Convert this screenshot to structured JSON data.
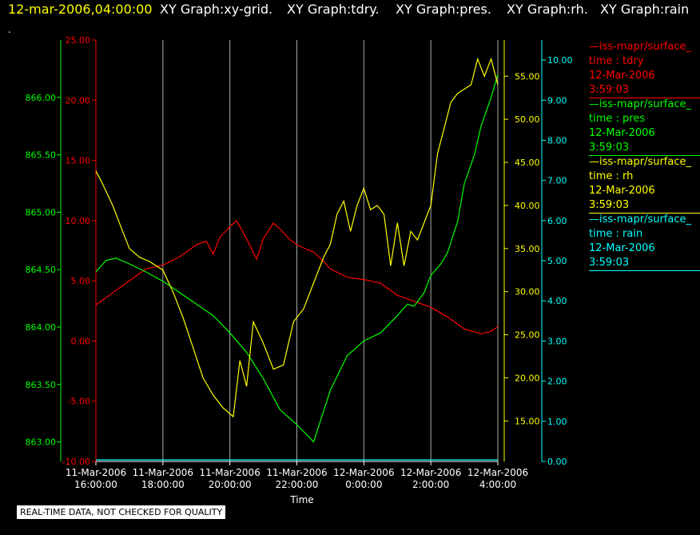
{
  "header": {
    "timestamp": "12-mar-2006,04:00:00",
    "titles": [
      "XY Graph:xy-grid.",
      "XY Graph:tdry.",
      "XY Graph:pres.",
      "XY Graph:rh.",
      "XY Graph:rain"
    ],
    "dot": "."
  },
  "notice": "REAL-TIME DATA, NOT CHECKED FOR QUALITY",
  "legend": [
    {
      "name": "—iss-mapr/surface_",
      "var": "time : tdry",
      "date": "12-Mar-2006",
      "time": "3:59:03",
      "color": "#ff0000"
    },
    {
      "name": "—iss-mapr/surface_",
      "var": "time : pres",
      "date": "12-Mar-2006",
      "time": "3:59:03",
      "color": "#00ff00"
    },
    {
      "name": "—iss-mapr/surface_",
      "var": "time : rh",
      "date": "12-Mar-2006",
      "time": "3:59:03",
      "color": "#ffff00"
    },
    {
      "name": "—iss-mapr/surface_",
      "var": "time : rain",
      "date": "12-Mar-2006",
      "time": "3:59:03",
      "color": "#00ffff"
    }
  ],
  "chart_data": {
    "type": "line",
    "xlabel": "Time",
    "x_ticks": [
      {
        "date": "11-Mar-2006",
        "time": "16:00:00",
        "hours": 16
      },
      {
        "date": "11-Mar-2006",
        "time": "18:00:00",
        "hours": 18
      },
      {
        "date": "11-Mar-2006",
        "time": "20:00:00",
        "hours": 20
      },
      {
        "date": "11-Mar-2006",
        "time": "22:00:00",
        "hours": 22
      },
      {
        "date": "12-Mar-2006",
        "time": "0:00:00",
        "hours": 24
      },
      {
        "date": "12-Mar-2006",
        "time": "2:00:00",
        "hours": 26
      },
      {
        "date": "12-Mar-2006",
        "time": "4:00:00",
        "hours": 28
      }
    ],
    "xlim": [
      16,
      28
    ],
    "grid": true,
    "axes": {
      "pres": {
        "color": "#00ff00",
        "ylim": [
          862.83,
          866.5
        ],
        "ticks": [
          "866.00",
          "865.50",
          "865.00",
          "864.50",
          "864.00",
          "863.50",
          "863.00"
        ]
      },
      "tdry": {
        "color": "#ff0000",
        "ylim": [
          -10,
          25
        ],
        "ticks": [
          "25.00",
          "20.00",
          "15.00",
          "10.00",
          "5.00",
          "0.00",
          "-5.00",
          "-10.00"
        ]
      },
      "rh": {
        "color": "#ffff00",
        "ylim": [
          10.3,
          59.2
        ],
        "ticks": [
          "55.00",
          "50.00",
          "45.00",
          "40.00",
          "35.00",
          "30.00",
          "25.00",
          "20.00",
          "15.00"
        ]
      },
      "rain": {
        "color": "#00ffff",
        "ylim": [
          0,
          10.5
        ],
        "ticks": [
          "10.00",
          "9.00",
          "8.00",
          "7.00",
          "6.00",
          "5.00",
          "4.00",
          "3.00",
          "2.00",
          "1.00",
          "0.00"
        ]
      }
    },
    "series": [
      {
        "key": "tdry",
        "color": "#ff0000",
        "x": [
          16.0,
          16.5,
          17.0,
          17.5,
          18.0,
          18.5,
          19.0,
          19.3,
          19.5,
          19.7,
          20.0,
          20.2,
          20.5,
          20.8,
          21.0,
          21.3,
          21.5,
          21.8,
          22.0,
          22.3,
          22.5,
          22.8,
          23.0,
          23.5,
          24.0,
          24.5,
          25.0,
          25.5,
          26.0,
          26.5,
          27.0,
          27.5,
          27.8,
          28.0
        ],
        "y": [
          3.0,
          4.0,
          5.0,
          6.0,
          6.3,
          7.0,
          8.0,
          8.3,
          7.2,
          8.6,
          9.5,
          10.0,
          8.5,
          6.8,
          8.5,
          9.8,
          9.3,
          8.4,
          8.0,
          7.6,
          7.4,
          6.6,
          6.0,
          5.3,
          5.1,
          4.8,
          3.8,
          3.3,
          2.8,
          2.0,
          1.0,
          0.6,
          0.8,
          1.2
        ]
      },
      {
        "key": "pres",
        "color": "#00ff00",
        "x": [
          16.0,
          16.3,
          16.6,
          17.0,
          17.5,
          18.0,
          18.5,
          19.0,
          19.5,
          20.0,
          20.5,
          21.0,
          21.5,
          22.0,
          22.5,
          23.0,
          23.5,
          24.0,
          24.5,
          25.0,
          25.3,
          25.5,
          25.8,
          26.0,
          26.3,
          26.5,
          26.8,
          27.0,
          27.3,
          27.5,
          27.8,
          28.0
        ],
        "y": [
          864.48,
          864.58,
          864.6,
          864.55,
          864.48,
          864.4,
          864.3,
          864.2,
          864.1,
          863.95,
          863.78,
          863.55,
          863.28,
          863.15,
          863.0,
          863.45,
          863.75,
          863.88,
          863.95,
          864.1,
          864.2,
          864.18,
          864.3,
          864.45,
          864.55,
          864.65,
          864.92,
          865.25,
          865.5,
          865.75,
          866.0,
          866.2
        ]
      },
      {
        "key": "rh",
        "color": "#ffff00",
        "x": [
          16.0,
          16.2,
          16.5,
          16.8,
          17.0,
          17.3,
          17.6,
          18.0,
          18.3,
          18.6,
          18.9,
          19.2,
          19.5,
          19.8,
          20.1,
          20.3,
          20.5,
          20.7,
          21.0,
          21.3,
          21.6,
          21.9,
          22.2,
          22.5,
          22.8,
          23.0,
          23.2,
          23.4,
          23.6,
          23.8,
          24.0,
          24.2,
          24.4,
          24.6,
          24.8,
          25.0,
          25.2,
          25.4,
          25.6,
          25.8,
          26.0,
          26.2,
          26.4,
          26.6,
          26.8,
          27.0,
          27.2,
          27.4,
          27.6,
          27.8,
          28.0
        ],
        "y": [
          44.0,
          42.5,
          40.0,
          37.0,
          35.0,
          34.0,
          33.5,
          32.5,
          30.0,
          27.0,
          23.5,
          20.0,
          18.0,
          16.5,
          15.5,
          22.0,
          19.0,
          26.5,
          24.0,
          21.0,
          21.5,
          26.5,
          28.0,
          31.0,
          34.0,
          35.5,
          39.0,
          40.5,
          37.0,
          40.0,
          42.0,
          39.5,
          40.0,
          39.0,
          33.0,
          38.0,
          33.0,
          37.0,
          36.0,
          38.0,
          40.0,
          46.0,
          49.0,
          52.0,
          53.0,
          53.5,
          54.0,
          57.0,
          55.0,
          57.0,
          54.0
        ]
      },
      {
        "key": "rain",
        "color": "#00ffff",
        "x": [
          16.0,
          28.0
        ],
        "y": [
          0.0,
          0.0
        ]
      }
    ]
  }
}
